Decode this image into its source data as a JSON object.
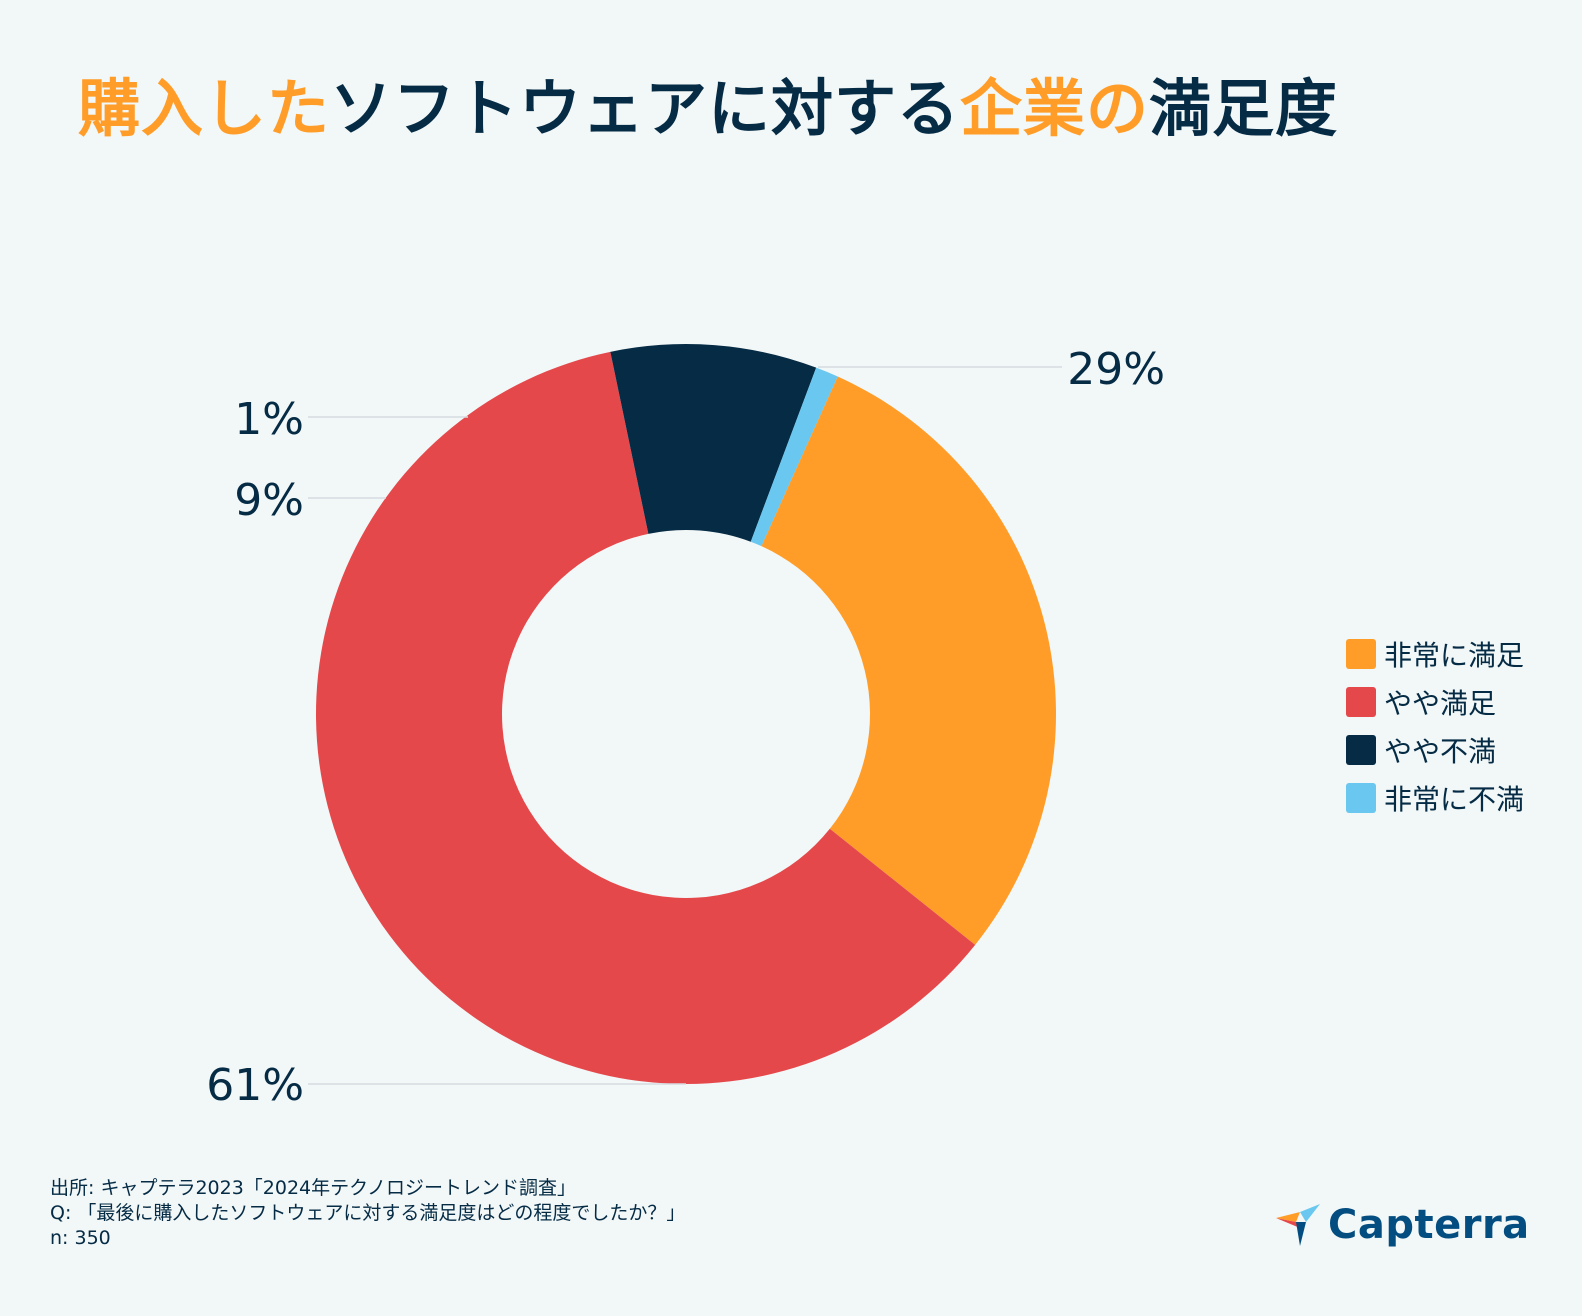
{
  "title": {
    "part1": "購入した",
    "part2": "ソフトウェアに対する",
    "part3": "企業の",
    "part4": "満足度"
  },
  "colors": {
    "orange": "#ff9d28",
    "red": "#e5484b",
    "navy": "#052b45",
    "lightblue": "#6ac7ef",
    "background": "#f2f7f7"
  },
  "chart_data": {
    "type": "pie",
    "style": "donut",
    "categories": [
      "非常に満足",
      "やや満足",
      "やや不満",
      "非常に不満"
    ],
    "values": [
      29,
      61,
      9,
      1
    ],
    "labels": [
      "29%",
      "61%",
      "9%",
      "1%"
    ],
    "unit": "%",
    "colors": [
      "#ff9d28",
      "#e5484b",
      "#052b45",
      "#6ac7ef"
    ],
    "legend_position": "right"
  },
  "legend": [
    {
      "label": "非常に満足",
      "color": "#ff9d28"
    },
    {
      "label": "やや満足",
      "color": "#e5484b"
    },
    {
      "label": "やや不満",
      "color": "#052b45"
    },
    {
      "label": "非常に不満",
      "color": "#6ac7ef"
    }
  ],
  "footer": {
    "source": "出所: キャプテラ2023「2024年テクノロジートレンド調査」",
    "question": "Q: 「最後に購入したソフトウェアに対する満足度はどの程度でしたか？」",
    "n": "n: 350"
  },
  "logo": {
    "text": "Capterra"
  }
}
